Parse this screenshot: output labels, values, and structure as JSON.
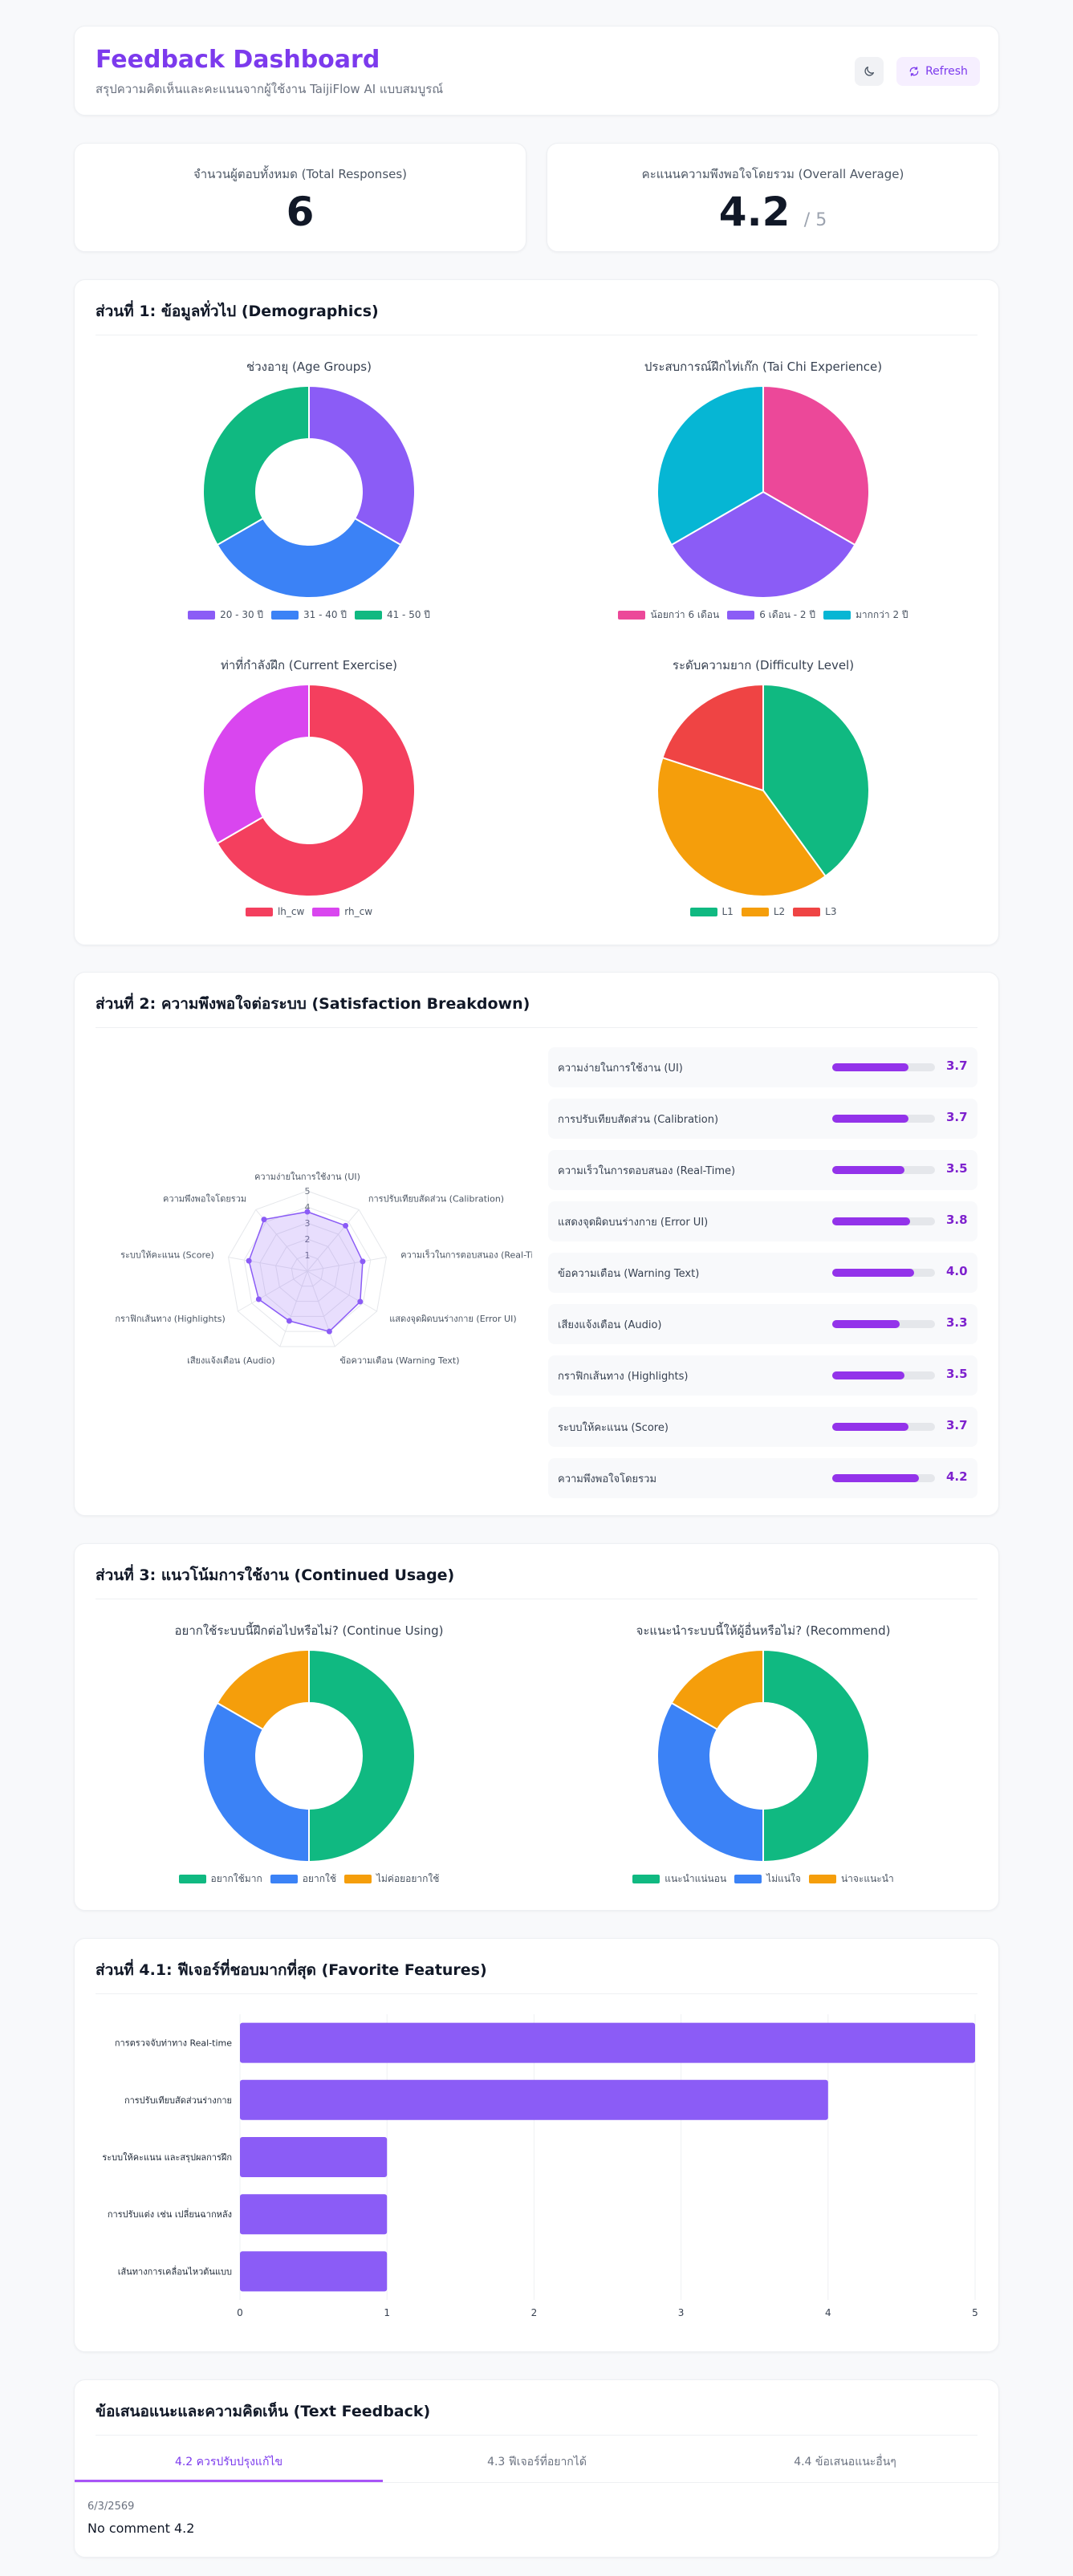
{
  "header": {
    "title": "Feedback Dashboard",
    "subtitle": "สรุปความคิดเห็นและคะแนนจากผู้ใช้งาน TaijiFlow AI แบบสมบูรณ์",
    "theme_icon": "moon-icon",
    "refresh_label": "Refresh",
    "refresh_icon": "refresh-icon"
  },
  "stats": {
    "total_label": "จำนวนผู้ตอบทั้งหมด (Total Responses)",
    "total_value": "6",
    "avg_label": "คะแนนความพึงพอใจโดยรวม (Overall Average)",
    "avg_value": "4.2",
    "avg_suffix": "/ 5"
  },
  "section1": {
    "title": "ส่วนที่ 1: ข้อมูลทั่วไป (Demographics)",
    "age_title": "ช่วงอายุ (Age Groups)",
    "exp_title": "ประสบการณ์ฝึกไท่เก๊ก (Tai Chi Experience)",
    "exercise_title": "ท่าที่กำลังฝึก (Current Exercise)",
    "difficulty_title": "ระดับความยาก (Difficulty Level)"
  },
  "section2": {
    "title": "ส่วนที่ 2: ความพึงพอใจต่อระบบ (Satisfaction Breakdown)",
    "items": [
      {
        "label": "ความง่ายในการใช้งาน (UI)",
        "value": "3.7",
        "fraction": 0.74
      },
      {
        "label": "การปรับเทียบสัดส่วน (Calibration)",
        "value": "3.7",
        "fraction": 0.74
      },
      {
        "label": "ความเร็วในการตอบสนอง (Real-Time)",
        "value": "3.5",
        "fraction": 0.7
      },
      {
        "label": "แสดงจุดผิดบนร่างกาย (Error UI)",
        "value": "3.8",
        "fraction": 0.76
      },
      {
        "label": "ข้อความเตือน (Warning Text)",
        "value": "4.0",
        "fraction": 0.8
      },
      {
        "label": "เสียงแจ้งเตือน (Audio)",
        "value": "3.3",
        "fraction": 0.66
      },
      {
        "label": "กราฟิกเส้นทาง (Highlights)",
        "value": "3.5",
        "fraction": 0.7
      },
      {
        "label": "ระบบให้คะแนน (Score)",
        "value": "3.7",
        "fraction": 0.74
      },
      {
        "label": "ความพึงพอใจโดยรวม",
        "value": "4.2",
        "fraction": 0.84
      }
    ]
  },
  "section3": {
    "title": "ส่วนที่ 3: แนวโน้มการใช้งาน (Continued Usage)",
    "continue_title": "อยากใช้ระบบนี้ฝึกต่อไปหรือไม่? (Continue Using)",
    "recommend_title": "จะแนะนำระบบนี้ให้ผู้อื่นหรือไม่? (Recommend)"
  },
  "section4": {
    "title": "ส่วนที่ 4.1: ฟีเจอร์ที่ชอบมากที่สุด (Favorite Features)"
  },
  "feedback": {
    "title": "ข้อเสนอแนะและความคิดเห็น (Text Feedback)",
    "tabs": [
      "4.2 ควรปรับปรุงแก้ไข",
      "4.3 ฟีเจอร์ที่อยากได้",
      "4.4 ข้อเสนอแนะอื่นๆ"
    ],
    "date": "6/3/2569",
    "text": "No comment 4.2"
  },
  "colors": {
    "purple": "#8b5cf6",
    "blue": "#3b82f6",
    "green": "#10b981",
    "pink": "#ec4899",
    "cyan": "#06b6d4",
    "red": "#f43f5e",
    "magenta": "#d946ef",
    "orange": "#f59e0b",
    "scarlet": "#ef4444",
    "bar": "#8b5cf6"
  },
  "chart_data": [
    {
      "id": "age",
      "type": "pie",
      "donut": true,
      "title": "ช่วงอายุ (Age Groups)",
      "categories": [
        "20 - 30 ปี",
        "31 - 40 ปี",
        "41 - 50 ปี"
      ],
      "values": [
        2,
        2,
        2
      ],
      "colors": [
        "#8b5cf6",
        "#3b82f6",
        "#10b981"
      ]
    },
    {
      "id": "exp",
      "type": "pie",
      "donut": false,
      "title": "ประสบการณ์ฝึกไท่เก๊ก (Tai Chi Experience)",
      "categories": [
        "น้อยกว่า 6 เดือน",
        "6 เดือน - 2 ปี",
        "มากกว่า 2 ปี"
      ],
      "values": [
        2,
        2,
        2
      ],
      "colors": [
        "#ec4899",
        "#8b5cf6",
        "#06b6d4"
      ]
    },
    {
      "id": "exercise",
      "type": "pie",
      "donut": true,
      "title": "ท่าที่กำลังฝึก (Current Exercise)",
      "categories": [
        "lh_cw",
        "rh_cw"
      ],
      "values": [
        4,
        2
      ],
      "colors": [
        "#f43f5e",
        "#d946ef"
      ]
    },
    {
      "id": "difficulty",
      "type": "pie",
      "donut": false,
      "title": "ระดับความยาก (Difficulty Level)",
      "categories": [
        "L1",
        "L2",
        "L3"
      ],
      "values": [
        2,
        2,
        1
      ],
      "colors": [
        "#10b981",
        "#f59e0b",
        "#ef4444"
      ]
    },
    {
      "id": "radar",
      "type": "radar",
      "axes": [
        "ความง่ายในการใช้งาน (UI)",
        "การปรับเทียบสัดส่วน (Calibration)",
        "ความเร็วในการตอบสนอง (Real-Time)",
        "แสดงจุดผิดบนร่างกาย (Error UI)",
        "ข้อความเตือน (Warning Text)",
        "เสียงแจ้งเตือน (Audio)",
        "กราฟิกเส้นทาง (Highlights)",
        "ระบบให้คะแนน (Score)",
        "ความพึงพอใจโดยรวม"
      ],
      "values": [
        3.7,
        3.7,
        3.5,
        3.8,
        4.0,
        3.3,
        3.5,
        3.7,
        4.2
      ],
      "ticks": [
        "1",
        "2",
        "3",
        "4",
        "5"
      ],
      "range": [
        0,
        5
      ]
    },
    {
      "id": "continue",
      "type": "pie",
      "donut": true,
      "title": "อยากใช้ระบบนี้ฝึกต่อไปหรือไม่? (Continue Using)",
      "categories": [
        "อยากใช้มาก",
        "อยากใช้",
        "ไม่ค่อยอยากใช้"
      ],
      "values": [
        3,
        2,
        1
      ],
      "colors": [
        "#10b981",
        "#3b82f6",
        "#f59e0b"
      ]
    },
    {
      "id": "recommend",
      "type": "pie",
      "donut": true,
      "title": "จะแนะนำระบบนี้ให้ผู้อื่นหรือไม่? (Recommend)",
      "categories": [
        "แนะนำแน่นอน",
        "ไม่แน่ใจ",
        "น่าจะแนะนำ"
      ],
      "values": [
        3,
        2,
        1
      ],
      "colors": [
        "#10b981",
        "#3b82f6",
        "#f59e0b"
      ]
    },
    {
      "id": "features",
      "type": "bar",
      "orientation": "horizontal",
      "title": "ส่วนที่ 4.1: ฟีเจอร์ที่ชอบมากที่สุด (Favorite Features)",
      "categories": [
        "การตรวจจับท่าทาง Real-time",
        "การปรับเทียบสัดส่วนร่างกาย",
        "ระบบให้คะแนน และสรุปผลการฝึก",
        "การปรับแต่ง เช่น เปลี่ยนฉากหลัง",
        "เส้นทางการเคลื่อนไหวต้นแบบ"
      ],
      "values": [
        5,
        4,
        1,
        1,
        1
      ],
      "xlim": [
        0,
        5
      ],
      "ticks": [
        "0",
        "1",
        "2",
        "3",
        "4",
        "5"
      ],
      "color": "#8b5cf6"
    }
  ]
}
